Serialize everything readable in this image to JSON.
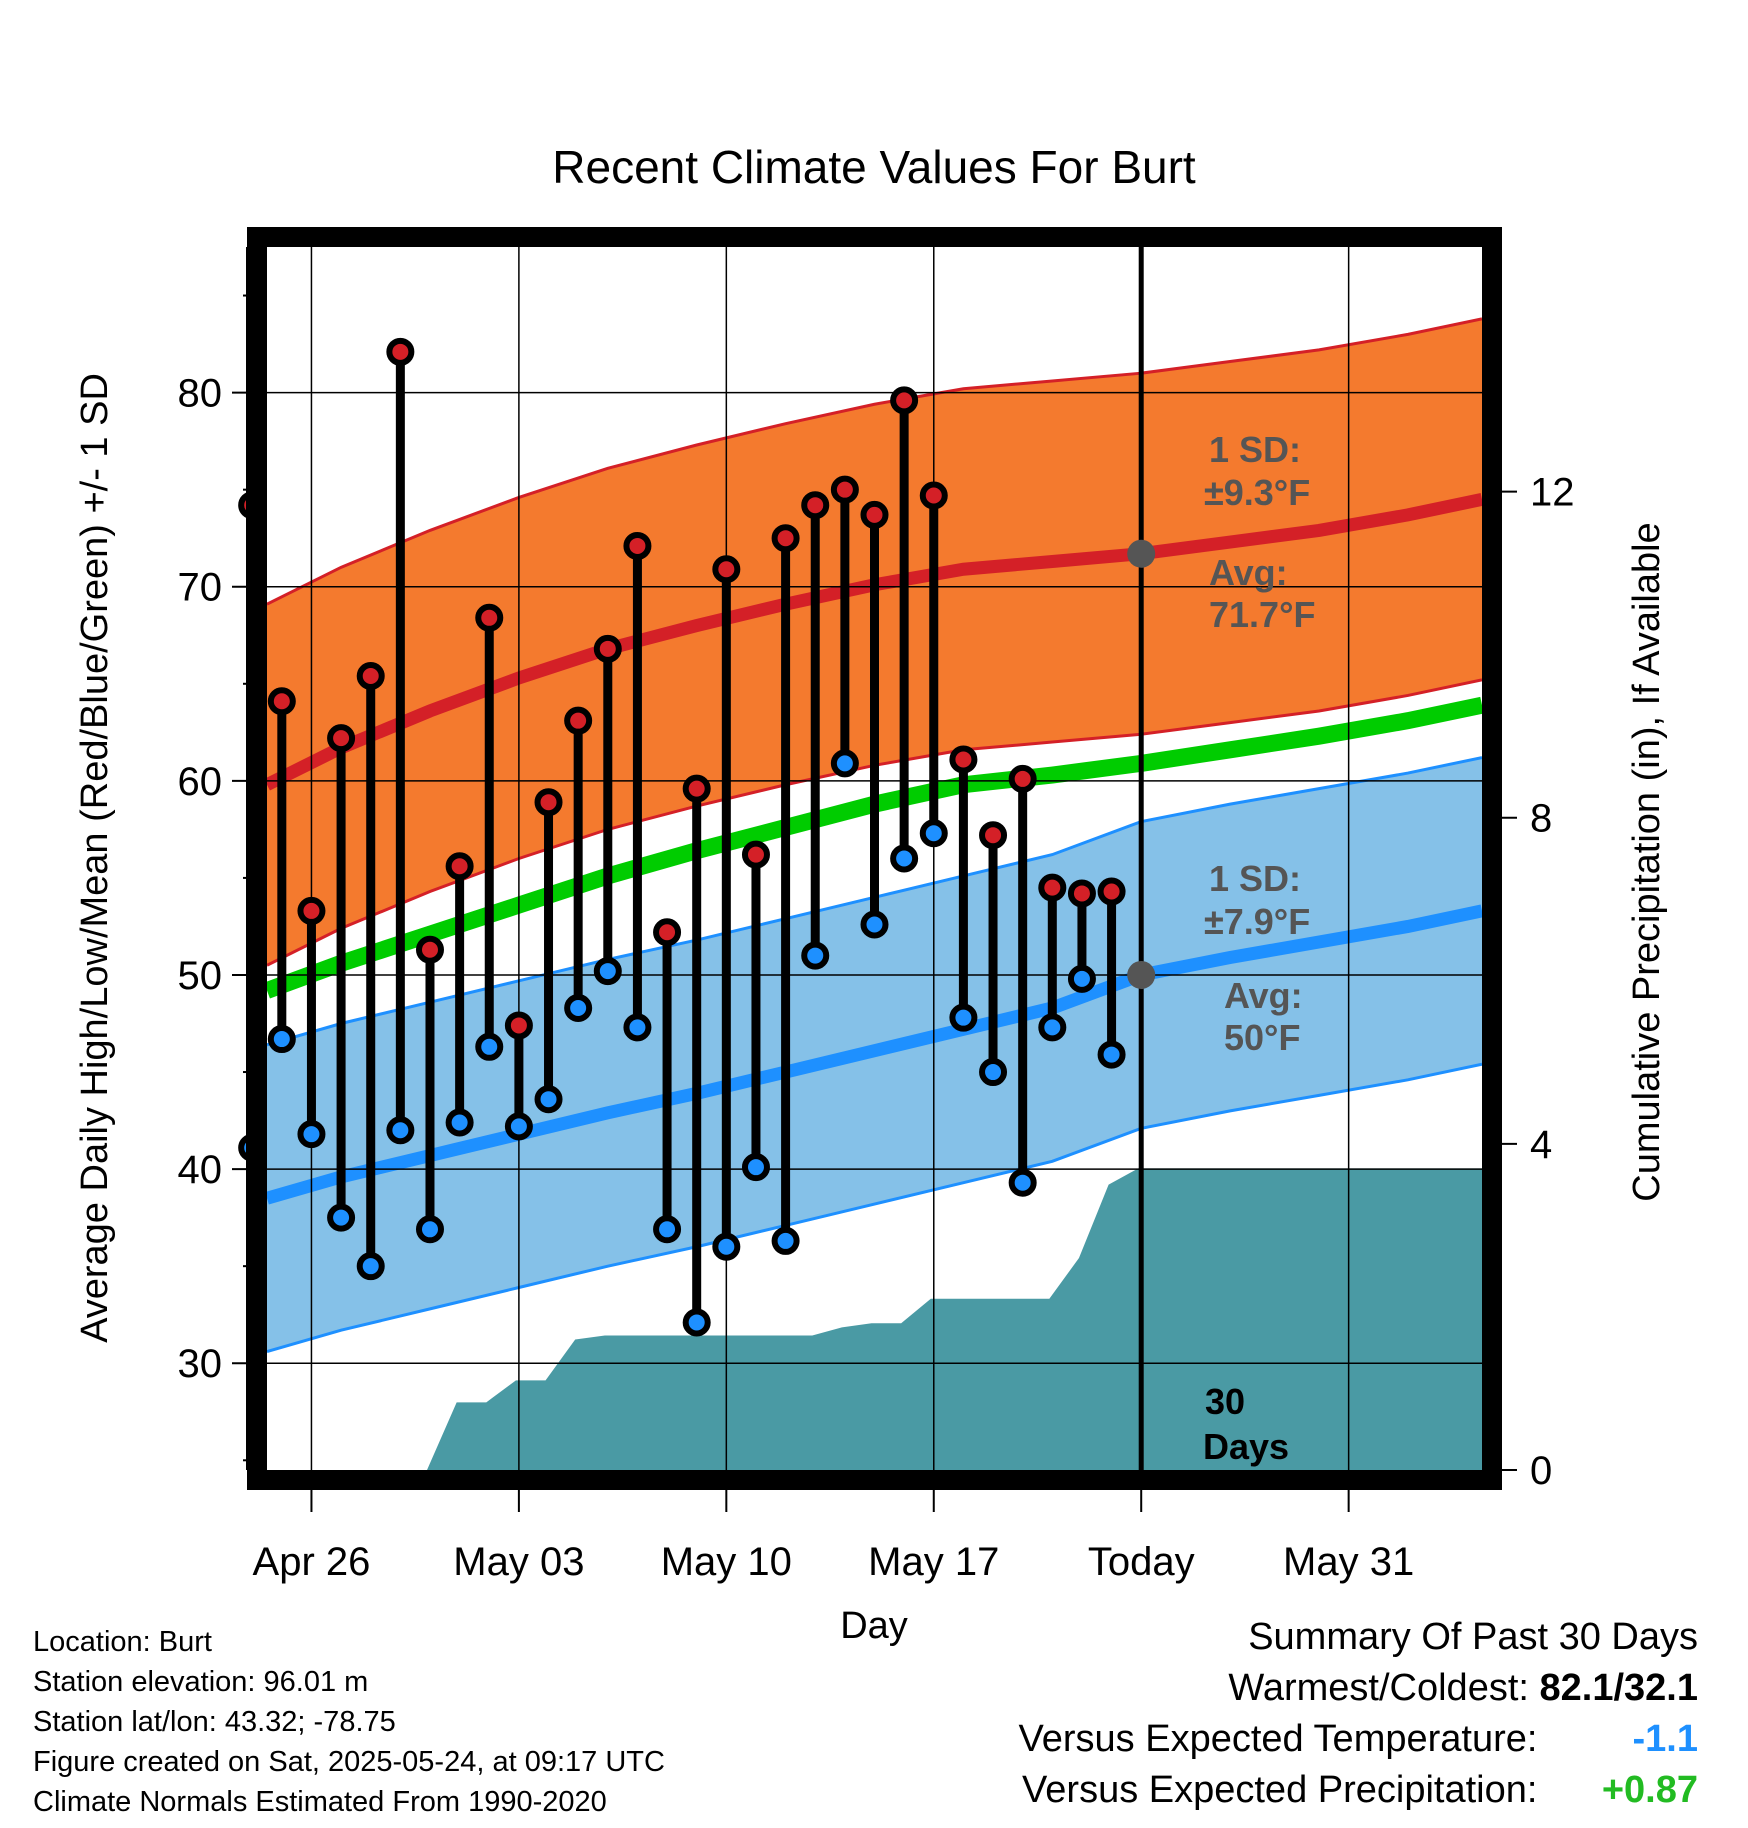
{
  "chart_data": {
    "type": "line",
    "title": "Recent Climate Values For Burt",
    "xlabel": "Day",
    "ylabel": "Average Daily High/Low/Mean (Red/Blue/Green) +/- 1 SD",
    "y2label": "Cumulative Precipitation (in), If Available",
    "ylim": [
      24.5,
      87.5
    ],
    "y2lim": [
      0,
      15
    ],
    "xlim": [
      -1.5,
      39.5
    ],
    "grid": true,
    "x_ticks": [
      {
        "x": 0,
        "label": "Apr 26"
      },
      {
        "x": 7,
        "label": "May 03"
      },
      {
        "x": 14,
        "label": "May 10"
      },
      {
        "x": 21,
        "label": "May 17"
      },
      {
        "x": 28,
        "label": "Today"
      },
      {
        "x": 35,
        "label": "May 31"
      }
    ],
    "y_ticks": [
      30,
      40,
      50,
      60,
      70,
      80
    ],
    "y2_ticks": [
      0,
      4,
      8,
      12
    ],
    "daily": {
      "x": [
        -2,
        -1,
        0,
        1,
        2,
        3,
        4,
        5,
        6,
        7,
        8,
        9,
        10,
        11,
        12,
        13,
        14,
        15,
        16,
        17,
        18,
        19,
        20,
        21,
        22,
        23,
        24,
        25,
        26,
        27
      ],
      "high": [
        74.2,
        64.1,
        53.3,
        62.2,
        65.4,
        82.1,
        51.3,
        55.6,
        68.4,
        47.4,
        58.9,
        63.1,
        66.8,
        72.1,
        52.2,
        59.6,
        70.9,
        56.2,
        72.5,
        74.2,
        75.0,
        73.7,
        79.6,
        74.7,
        61.1,
        57.2,
        60.1,
        54.5,
        54.2,
        54.3
      ],
      "low": [
        41.1,
        46.7,
        41.8,
        37.5,
        35.0,
        42.0,
        36.9,
        42.4,
        46.3,
        42.2,
        43.6,
        48.3,
        50.2,
        47.3,
        36.9,
        32.1,
        36.0,
        40.1,
        36.3,
        51.0,
        60.9,
        52.6,
        56.0,
        57.3,
        47.8,
        45.0,
        39.3,
        47.3,
        49.8,
        45.9
      ]
    },
    "normals": {
      "x": [
        -1.5,
        1,
        4,
        7,
        10,
        13,
        16,
        19,
        22,
        25,
        28,
        31,
        34,
        37,
        39.5
      ],
      "avg_high": [
        59.8,
        61.7,
        63.6,
        65.3,
        66.8,
        68.0,
        69.1,
        70.1,
        70.9,
        71.3,
        71.7,
        72.3,
        72.9,
        73.7,
        74.5
      ],
      "avg_low": [
        38.5,
        39.6,
        40.7,
        41.8,
        42.9,
        43.9,
        45.0,
        46.1,
        47.2,
        48.3,
        50.0,
        50.9,
        51.7,
        52.5,
        53.3
      ],
      "avg_mean": [
        49.2,
        50.6,
        52.1,
        53.6,
        55.1,
        56.4,
        57.6,
        58.8,
        59.8,
        60.3,
        60.9,
        61.6,
        62.3,
        63.1,
        63.9
      ],
      "high_sd": 9.3,
      "low_sd": 7.9
    },
    "precip": {
      "x": [
        2.9,
        3.9,
        4.9,
        5.9,
        6.9,
        7.9,
        8.9,
        9.9,
        10.9,
        11.9,
        12.9,
        13.9,
        14.9,
        15.9,
        16.9,
        17.9,
        18.9,
        19.9,
        20.9,
        21.9,
        22.9,
        23.9,
        24.9,
        25.9,
        26.9,
        27.9,
        39.5
      ],
      "y": [
        0,
        0,
        0.83,
        0.83,
        1.1,
        1.1,
        1.6,
        1.65,
        1.65,
        1.65,
        1.65,
        1.65,
        1.65,
        1.65,
        1.65,
        1.75,
        1.8,
        1.8,
        2.1,
        2.1,
        2.1,
        2.1,
        2.1,
        2.6,
        3.5,
        3.7,
        3.7
      ]
    },
    "today_x": 28,
    "annotations": {
      "high_sd_line1": "1 SD:",
      "high_sd_line2": "±9.3°F",
      "high_avg_line1": "Avg:",
      "high_avg_line2": "71.7°F",
      "low_sd_line1": "1 SD:",
      "low_sd_line2": "±7.9°F",
      "low_avg_line1": "Avg:",
      "low_avg_line2": "50°F",
      "days_line1": "30",
      "days_line2": "Days"
    },
    "colors": {
      "high_band": "#f47a2e",
      "high_line": "#d42027",
      "low_band": "#85c1e8",
      "low_line": "#1e90ff",
      "mean_line": "#00cc00",
      "precip": "#4a9aa4",
      "high_marker": "#d42027",
      "low_marker": "#1e90ff",
      "annotation": "#555555"
    }
  },
  "footer": {
    "location": "Location: Burt",
    "elevation": "Station elevation: 96.01 m",
    "latlon": "Station lat/lon: 43.32; -78.75",
    "created": "Figure created on Sat, 2025-05-24, at 09:17 UTC",
    "normals": "Climate Normals Estimated From 1990-2020"
  },
  "summary": {
    "title": "Summary Of Past 30 Days",
    "warmest_label": "Warmest/Coldest:",
    "warmest_value": "82.1/32.1",
    "temp_label": "Versus Expected Temperature:",
    "temp_value": "-1.1",
    "temp_color": "#1e90ff",
    "precip_label": "Versus Expected Precipitation:",
    "precip_value": "+0.87",
    "precip_color": "#22bb22"
  }
}
